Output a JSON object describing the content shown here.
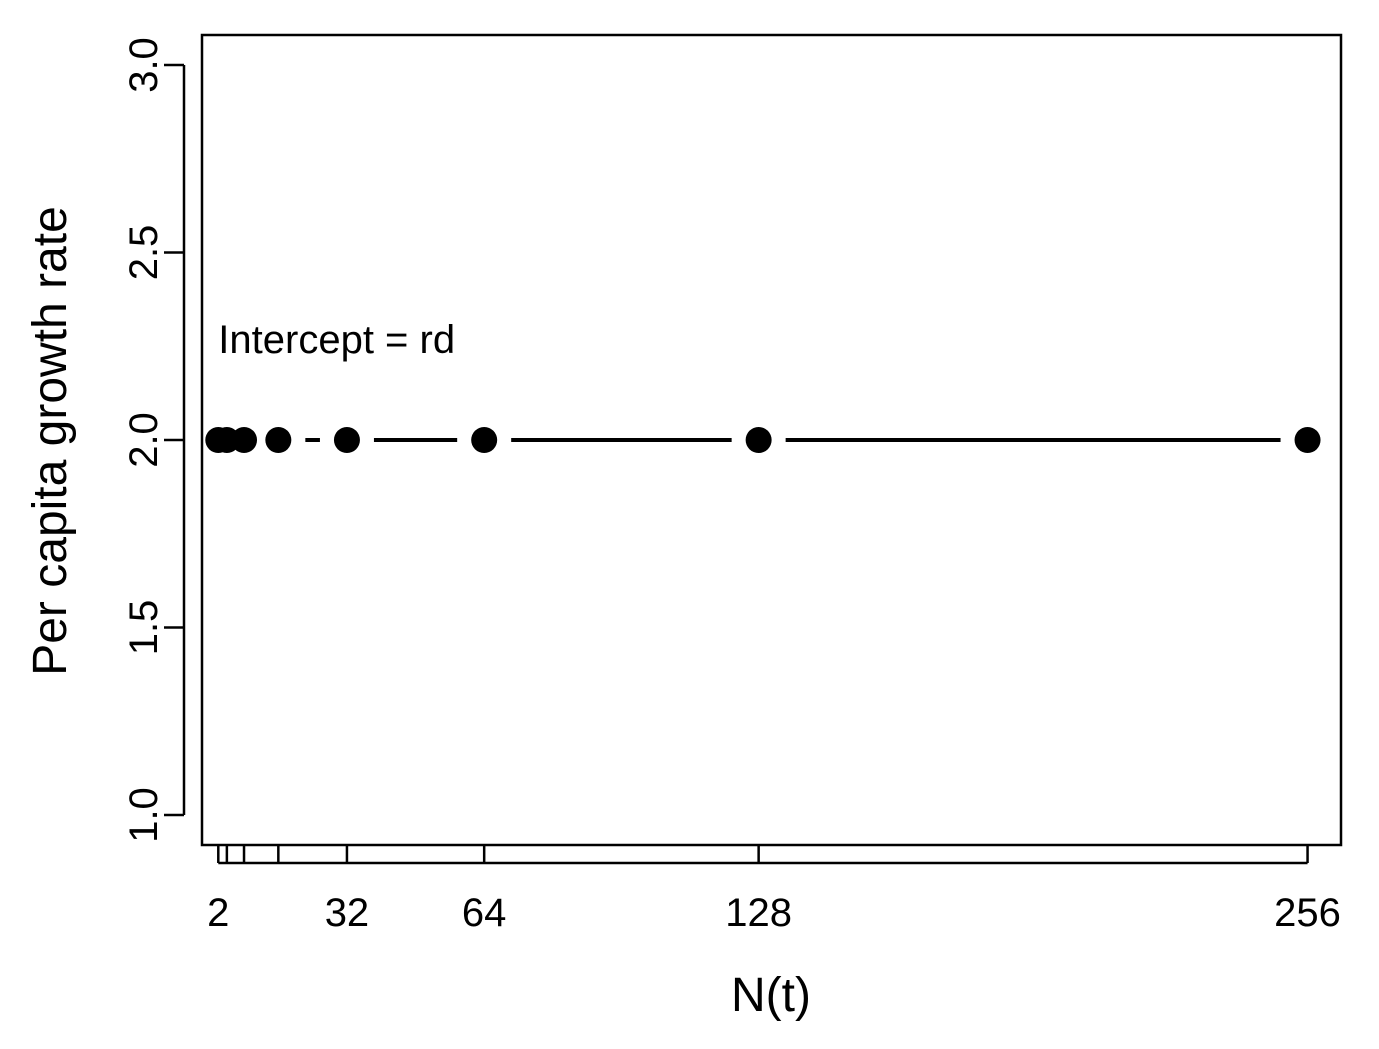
{
  "chart_data": {
    "type": "line",
    "xlabel": "N(t)",
    "ylabel": "Per capita growth rate",
    "xlim": [
      -1.8,
      263.8
    ],
    "ylim": [
      0.92,
      3.08
    ],
    "x_ticks": [
      2,
      4,
      8,
      16,
      32,
      64,
      128,
      256
    ],
    "x_tick_labels": [
      "2",
      "",
      "",
      "",
      "32",
      "64",
      "128",
      "256"
    ],
    "y_ticks": [
      1.0,
      1.5,
      2.0,
      2.5,
      3.0
    ],
    "y_tick_labels": [
      "1.0",
      "1.5",
      "2.0",
      "2.5",
      "3.0"
    ],
    "series": [
      {
        "x": [
          2,
          4,
          8,
          16,
          32,
          64,
          128,
          256
        ],
        "y": [
          2.0,
          2.0,
          2.0,
          2.0,
          2.0,
          2.0,
          2.0,
          2.0
        ],
        "marker": "filled-circle",
        "line": "solid-with-gaps-at-points",
        "color": "#000000"
      }
    ],
    "annotations": [
      {
        "text": "Intercept = rd",
        "x": 2,
        "y": 2.27
      }
    ],
    "grid": false,
    "legend": "none"
  }
}
